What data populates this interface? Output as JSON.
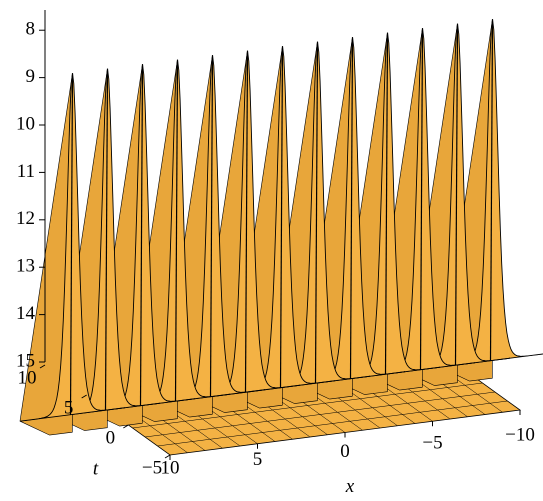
{
  "chart_data": {
    "type": "surface3d",
    "color": "#f4b244",
    "z_axis": {
      "lim": [
        15,
        7.7
      ],
      "ticks": [
        8,
        9,
        10,
        11,
        12,
        13,
        14,
        15
      ]
    },
    "x_axis": {
      "label": "x",
      "lim": [
        10,
        -10
      ],
      "ticks": [
        10,
        5,
        0,
        {
          "value": -5,
          "label": "−5"
        },
        {
          "value": -10,
          "label": "−10"
        }
      ]
    },
    "t_axis": {
      "label": "t",
      "lim": [
        -5,
        10
      ],
      "ticks": [
        10,
        5,
        0,
        {
          "value": -5,
          "label": "−5"
        }
      ]
    },
    "peaks": {
      "x": [
        12,
        10,
        8,
        6,
        4,
        2,
        0,
        -2,
        -4,
        -6,
        -8,
        -10,
        -12
      ],
      "values": [
        7.8,
        7.8,
        7.8,
        7.8,
        7.8,
        7.8,
        7.8,
        7.8,
        7.8,
        7.8,
        7.8,
        7.8,
        7.8
      ]
    }
  }
}
